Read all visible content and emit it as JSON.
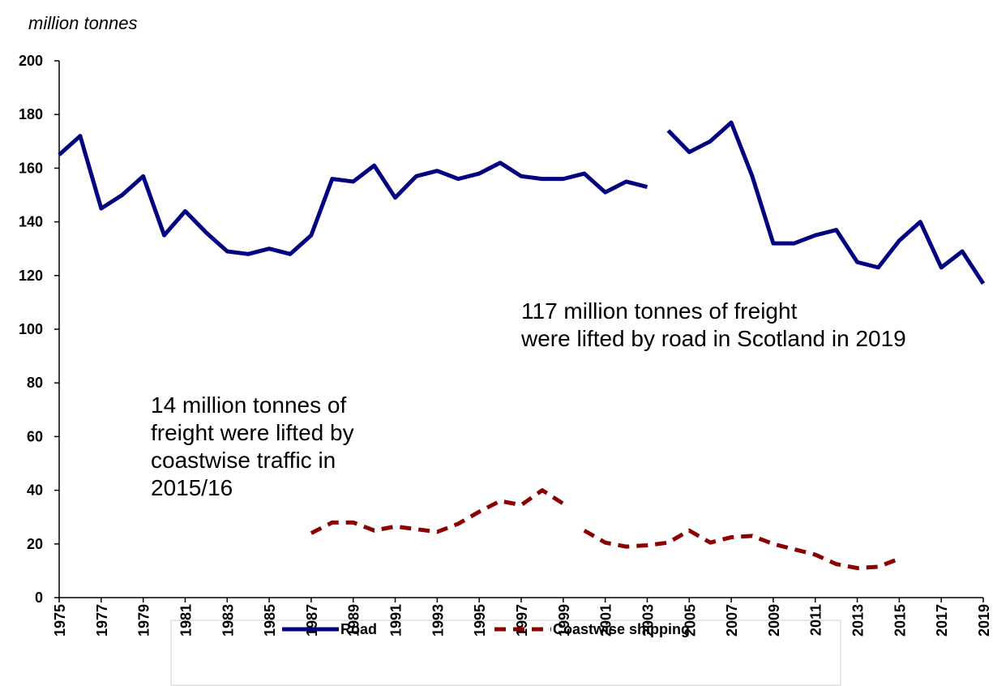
{
  "chart_data": {
    "type": "line",
    "y_axis_label": "million tonnes",
    "xlim": [
      1975,
      2019
    ],
    "xticks": [
      1975,
      1977,
      1979,
      1981,
      1983,
      1985,
      1987,
      1989,
      1991,
      1993,
      1995,
      1997,
      1999,
      2001,
      2003,
      2005,
      2007,
      2009,
      2011,
      2013,
      2015,
      2017,
      2019
    ],
    "ylim": [
      0,
      200
    ],
    "yticks": [
      0,
      20,
      40,
      60,
      80,
      100,
      120,
      140,
      160,
      180,
      200
    ],
    "grid": false,
    "legend": "bottom",
    "series": [
      {
        "name": "Road",
        "color": "#000080",
        "dash": false,
        "x": [
          1975,
          1976,
          1977,
          1978,
          1979,
          1980,
          1981,
          1982,
          1983,
          1984,
          1985,
          1986,
          1987,
          1988,
          1989,
          1990,
          1991,
          1992,
          1993,
          1994,
          1995,
          1996,
          1997,
          1998,
          1999,
          2000,
          2001,
          2002,
          2003,
          2003.5,
          2004,
          2005,
          2006,
          2007,
          2008,
          2009,
          2010,
          2011,
          2012,
          2013,
          2014,
          2015,
          2016,
          2017,
          2018,
          2019
        ],
        "values": [
          165,
          172,
          145,
          150,
          157,
          135,
          144,
          136,
          129,
          128,
          130,
          128,
          135,
          156,
          155,
          161,
          149,
          157,
          159,
          156,
          158,
          162,
          157,
          156,
          156,
          158,
          151,
          155,
          153,
          null,
          174,
          166,
          170,
          177,
          157,
          132,
          132,
          135,
          137,
          125,
          123,
          133,
          140,
          123,
          129,
          117
        ]
      },
      {
        "name": "Coastwise shipping",
        "color": "#8b0000",
        "dash": true,
        "x": [
          1987,
          1988,
          1989,
          1990,
          1991,
          1992,
          1993,
          1994,
          1995,
          1996,
          1997,
          1998,
          1999,
          1999.5,
          2000,
          2001,
          2002,
          2003,
          2004,
          2005,
          2006,
          2007,
          2008,
          2009,
          2010,
          2011,
          2012,
          2013,
          2014,
          2015
        ],
        "values": [
          24,
          28,
          28,
          25,
          26.5,
          25.5,
          24.5,
          27.5,
          32,
          36,
          34.5,
          40,
          35,
          null,
          25,
          20.5,
          19,
          19.5,
          20.5,
          25,
          20.5,
          22.5,
          23,
          20,
          18,
          16,
          12.5,
          11,
          11.5,
          14.5
        ]
      }
    ],
    "annotations": [
      {
        "lines": [
          "117 million tonnes of freight",
          "were lifted by road in Scotland in 2019"
        ]
      },
      {
        "lines": [
          "14 million tonnes of",
          "freight were lifted by",
          "coastwise traffic in",
          "2015/16"
        ]
      }
    ]
  }
}
